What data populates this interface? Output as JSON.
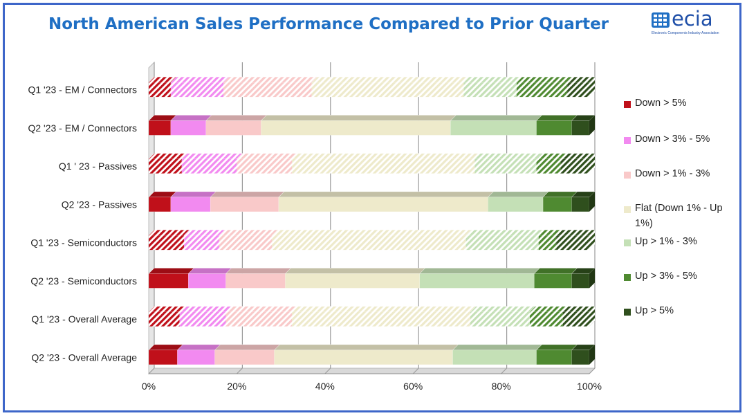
{
  "title": "North American Sales Performance Compared to Prior Quarter",
  "logo": {
    "text": "ecia",
    "subtitle": "Electronic Components Industry Association"
  },
  "colors": {
    "Down > 5%": "#c0101a",
    "Down > 3% - 5%": "#f28af0",
    "Down > 1% - 3%": "#f9c9c9",
    "Flat (Down 1% - Up 1%)": "#eeeacb",
    "Up > 1% - 3%": "#c4e0b6",
    "Up > 3% - 5%": "#4f8a31",
    "Up > 5%": "#2f4f1d",
    "frame": "#3d66c9",
    "title": "#1f6fc4"
  },
  "chart_data": {
    "type": "bar",
    "orientation": "horizontal",
    "stacked": "percent",
    "three_d": true,
    "title": "North American Sales Performance Compared to Prior Quarter",
    "categories": [
      "Q1 '23 - EM / Connectors",
      "Q2 '23 - EM / Connectors",
      "Q1 ' 23 - Passives",
      "Q2 '23 - Passives",
      "Q1 '23 - Semiconductors",
      "Q2 '23 - Semiconductors",
      "Q1 '23 - Overall Average",
      "Q2 '23 - Overall Average"
    ],
    "hatched_categories": [
      "Q1 '23 - EM / Connectors",
      "Q1 ' 23 - Passives",
      "Q1 '23 - Semiconductors",
      "Q1 '23 - Overall Average"
    ],
    "series": [
      {
        "name": "Down > 5%",
        "values": [
          5,
          5,
          7.5,
          5,
          8,
          9,
          7,
          6.5
        ]
      },
      {
        "name": "Down > 3% - 5%",
        "values": [
          12,
          8,
          12.5,
          9,
          8,
          8.5,
          10.5,
          8.5
        ]
      },
      {
        "name": "Down > 1% - 3%",
        "values": [
          20,
          12.5,
          12.5,
          15.5,
          12,
          13.5,
          15,
          13.5
        ]
      },
      {
        "name": "Flat (Down 1% - Up 1%)",
        "values": [
          34.5,
          43,
          41.5,
          47.5,
          44,
          30.5,
          40.5,
          40.5
        ]
      },
      {
        "name": "Up > 1% - 3%",
        "values": [
          12,
          19.5,
          14,
          12.5,
          16.5,
          26,
          13.5,
          19
        ]
      },
      {
        "name": "Up > 3% - 5%",
        "values": [
          11.5,
          8,
          5.5,
          6.5,
          4,
          8.5,
          7.5,
          8
        ]
      },
      {
        "name": "Up > 5%",
        "values": [
          5,
          4,
          6.5,
          4,
          7.5,
          4,
          6,
          4
        ]
      }
    ],
    "xlim": [
      0,
      100
    ],
    "x_ticks": [
      "0%",
      "20%",
      "40%",
      "60%",
      "80%",
      "100%"
    ],
    "legend_position": "right",
    "grid": true
  }
}
